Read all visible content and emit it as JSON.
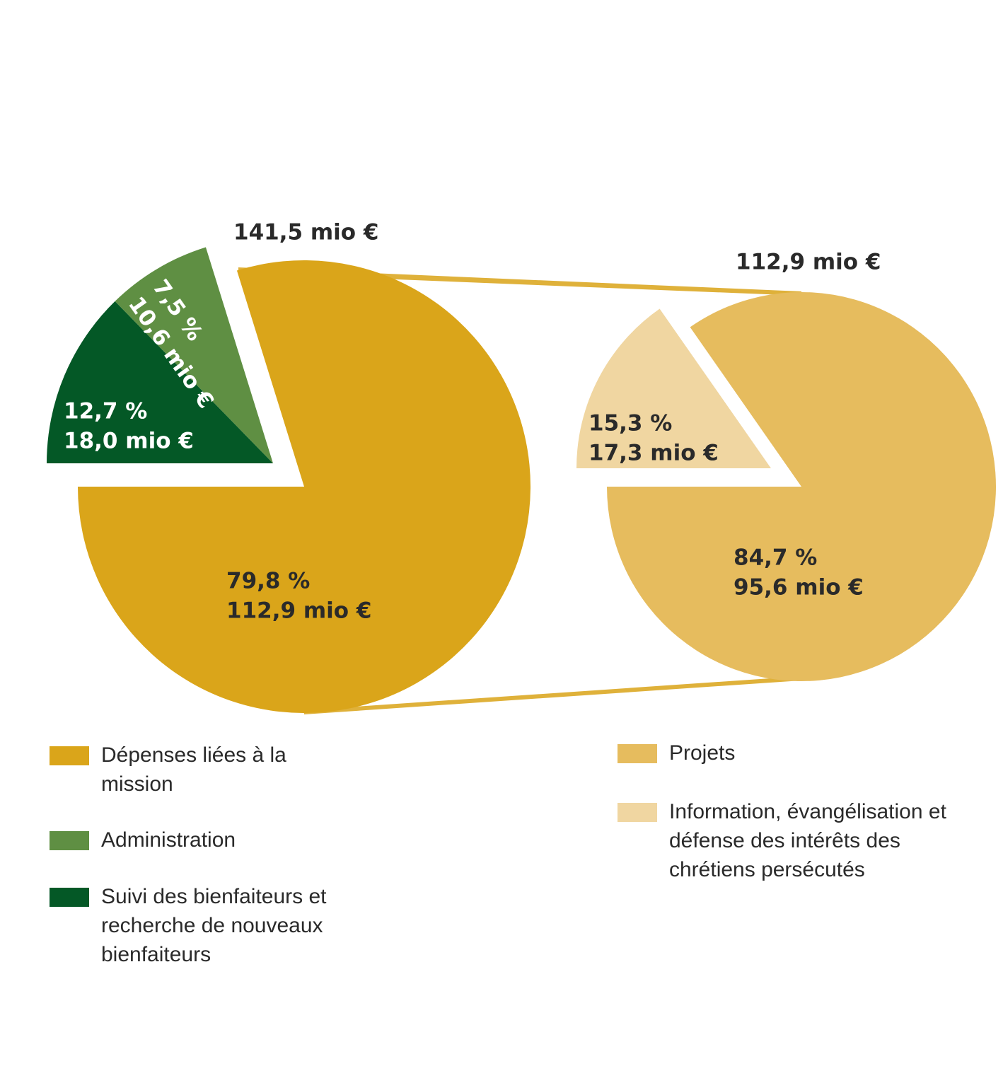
{
  "chart_data": [
    {
      "type": "pie",
      "title": "141,5 mio €",
      "categories": [
        "Dépenses liées à la mission",
        "Administration",
        "Suivi des bienfaiteurs et recherche de nouveaux bienfaiteurs"
      ],
      "values": [
        79.8,
        7.5,
        12.7
      ],
      "value_labels": [
        "79,8 %",
        "7,5 %",
        "12,7 %"
      ],
      "amount_labels": [
        "112,9 mio €",
        "10,6 mio €",
        "18,0 mio €"
      ],
      "colors": [
        "#daa51a",
        "#5f8f43",
        "#045826"
      ]
    },
    {
      "type": "pie",
      "title": "112,9 mio €",
      "categories": [
        "Projets",
        "Information, évangélisation et défense des intérêts des chrétiens persécutés"
      ],
      "values": [
        84.7,
        15.3
      ],
      "value_labels": [
        "84,7 %",
        "15,3 %"
      ],
      "amount_labels": [
        "95,6 mio €",
        "17,3 mio €"
      ],
      "colors": [
        "#e6bc5e",
        "#f0d6a1"
      ]
    }
  ]
}
